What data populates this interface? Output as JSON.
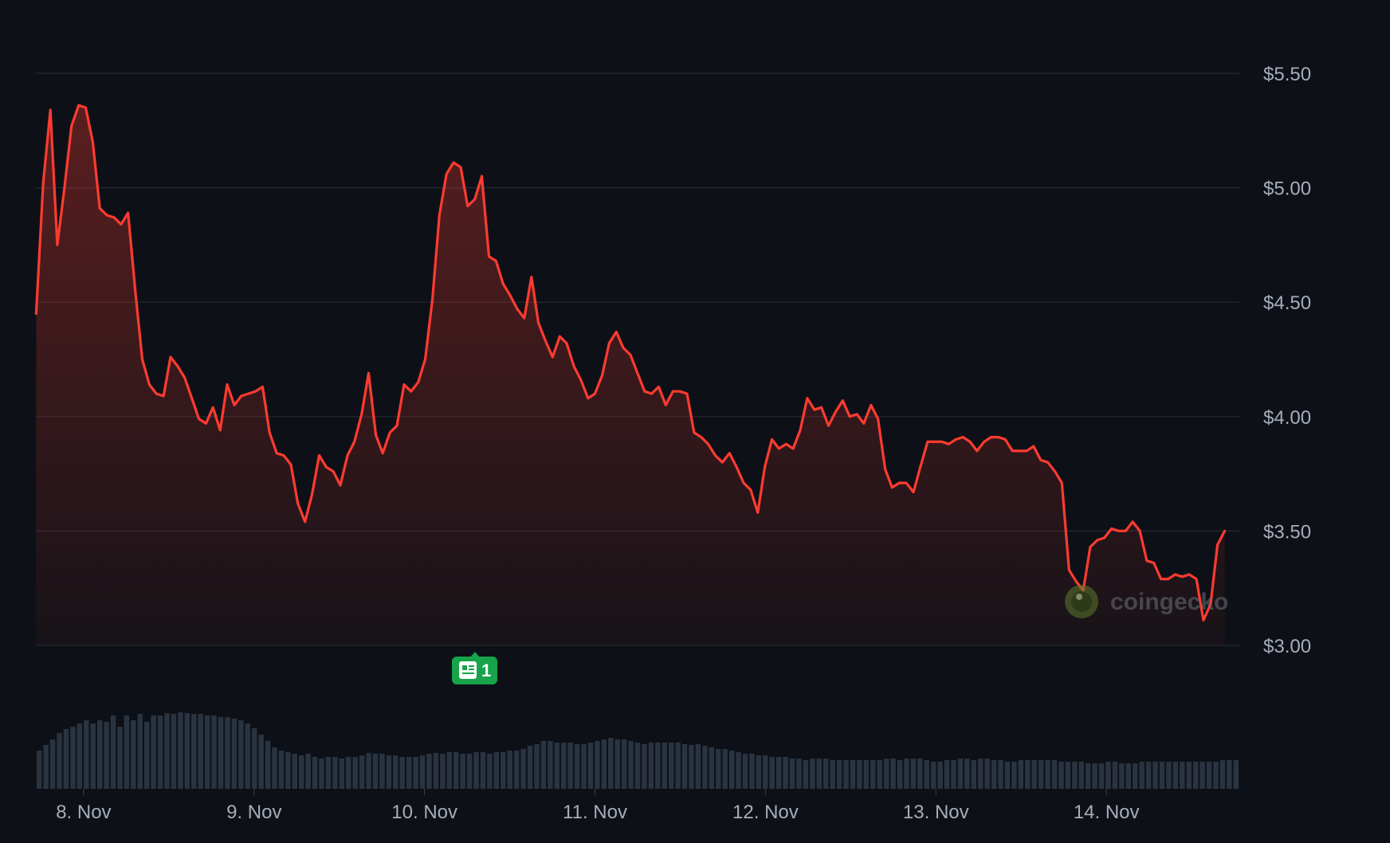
{
  "colors": {
    "background": "#0d1117",
    "line": "#ff3b30",
    "grid": "#242a33",
    "volume": "#2a3340",
    "tick_text": "#a7adb9",
    "news_badge": "#16a34a"
  },
  "watermark": {
    "text": "coingecko",
    "icon": "coingecko-logo-icon"
  },
  "news_badge": {
    "count": "1",
    "icon": "newspaper-icon"
  },
  "chart_data": {
    "type": "area",
    "title": "",
    "xlabel": "",
    "ylabel": "",
    "ylim": [
      3.0,
      5.5
    ],
    "xlim": [
      7.72,
      14.78
    ],
    "grid": true,
    "legend": "none",
    "y_ticks": [
      5.5,
      5.0,
      4.5,
      4.0,
      3.5,
      3.0
    ],
    "y_tick_labels": [
      "$5.50",
      "$5.00",
      "$4.50",
      "$4.00",
      "$3.50",
      "$3.00"
    ],
    "x_ticks": [
      8,
      9,
      10,
      11,
      12,
      13,
      14
    ],
    "x_tick_labels": [
      "8. Nov",
      "9. Nov",
      "10. Nov",
      "11. Nov",
      "12. Nov",
      "13. Nov",
      "14. Nov"
    ],
    "series": [
      {
        "values": [
          [
            7.722,
            4.45
          ],
          [
            7.763,
            5.02
          ],
          [
            7.805,
            5.34
          ],
          [
            7.846,
            4.75
          ],
          [
            7.888,
            5.0
          ],
          [
            7.929,
            5.27
          ],
          [
            7.971,
            5.36
          ],
          [
            8.012,
            5.35
          ],
          [
            8.054,
            5.2
          ],
          [
            8.095,
            4.91
          ],
          [
            8.137,
            4.88
          ],
          [
            8.178,
            4.87
          ],
          [
            8.22,
            4.84
          ],
          [
            8.261,
            4.89
          ],
          [
            8.303,
            4.55
          ],
          [
            8.344,
            4.25
          ],
          [
            8.386,
            4.14
          ],
          [
            8.427,
            4.1
          ],
          [
            8.469,
            4.09
          ],
          [
            8.51,
            4.26
          ],
          [
            8.552,
            4.22
          ],
          [
            8.593,
            4.17
          ],
          [
            8.635,
            4.08
          ],
          [
            8.676,
            3.99
          ],
          [
            8.718,
            3.97
          ],
          [
            8.759,
            4.04
          ],
          [
            8.801,
            3.94
          ],
          [
            8.842,
            4.14
          ],
          [
            8.884,
            4.05
          ],
          [
            8.925,
            4.09
          ],
          [
            8.967,
            4.1
          ],
          [
            9.008,
            4.11
          ],
          [
            9.05,
            4.13
          ],
          [
            9.091,
            3.93
          ],
          [
            9.133,
            3.84
          ],
          [
            9.174,
            3.83
          ],
          [
            9.216,
            3.79
          ],
          [
            9.257,
            3.62
          ],
          [
            9.299,
            3.54
          ],
          [
            9.34,
            3.66
          ],
          [
            9.382,
            3.83
          ],
          [
            9.423,
            3.78
          ],
          [
            9.465,
            3.76
          ],
          [
            9.506,
            3.7
          ],
          [
            9.548,
            3.83
          ],
          [
            9.589,
            3.89
          ],
          [
            9.631,
            4.01
          ],
          [
            9.672,
            4.19
          ],
          [
            9.714,
            3.92
          ],
          [
            9.755,
            3.84
          ],
          [
            9.797,
            3.93
          ],
          [
            9.838,
            3.96
          ],
          [
            9.88,
            4.14
          ],
          [
            9.921,
            4.11
          ],
          [
            9.963,
            4.15
          ],
          [
            10.004,
            4.25
          ],
          [
            10.046,
            4.51
          ],
          [
            10.087,
            4.88
          ],
          [
            10.129,
            5.06
          ],
          [
            10.17,
            5.11
          ],
          [
            10.212,
            5.09
          ],
          [
            10.253,
            4.92
          ],
          [
            10.295,
            4.95
          ],
          [
            10.336,
            5.05
          ],
          [
            10.378,
            4.7
          ],
          [
            10.419,
            4.68
          ],
          [
            10.461,
            4.58
          ],
          [
            10.502,
            4.53
          ],
          [
            10.544,
            4.47
          ],
          [
            10.585,
            4.43
          ],
          [
            10.627,
            4.61
          ],
          [
            10.668,
            4.41
          ],
          [
            10.71,
            4.33
          ],
          [
            10.751,
            4.26
          ],
          [
            10.793,
            4.35
          ],
          [
            10.834,
            4.32
          ],
          [
            10.876,
            4.22
          ],
          [
            10.917,
            4.16
          ],
          [
            10.959,
            4.08
          ],
          [
            11.0,
            4.1
          ],
          [
            11.042,
            4.18
          ],
          [
            11.083,
            4.32
          ],
          [
            11.125,
            4.37
          ],
          [
            11.166,
            4.3
          ],
          [
            11.208,
            4.27
          ],
          [
            11.249,
            4.19
          ],
          [
            11.291,
            4.11
          ],
          [
            11.332,
            4.1
          ],
          [
            11.374,
            4.13
          ],
          [
            11.415,
            4.05
          ],
          [
            11.457,
            4.11
          ],
          [
            11.498,
            4.11
          ],
          [
            11.54,
            4.1
          ],
          [
            11.581,
            3.93
          ],
          [
            11.623,
            3.91
          ],
          [
            11.664,
            3.88
          ],
          [
            11.706,
            3.83
          ],
          [
            11.747,
            3.8
          ],
          [
            11.789,
            3.84
          ],
          [
            11.83,
            3.78
          ],
          [
            11.872,
            3.71
          ],
          [
            11.913,
            3.68
          ],
          [
            11.955,
            3.58
          ],
          [
            11.996,
            3.78
          ],
          [
            12.038,
            3.9
          ],
          [
            12.079,
            3.86
          ],
          [
            12.121,
            3.88
          ],
          [
            12.162,
            3.86
          ],
          [
            12.204,
            3.94
          ],
          [
            12.245,
            4.08
          ],
          [
            12.287,
            4.03
          ],
          [
            12.328,
            4.04
          ],
          [
            12.37,
            3.96
          ],
          [
            12.411,
            4.02
          ],
          [
            12.453,
            4.07
          ],
          [
            12.494,
            4.0
          ],
          [
            12.536,
            4.01
          ],
          [
            12.577,
            3.97
          ],
          [
            12.619,
            4.05
          ],
          [
            12.66,
            3.99
          ],
          [
            12.702,
            3.77
          ],
          [
            12.743,
            3.69
          ],
          [
            12.785,
            3.71
          ],
          [
            12.826,
            3.71
          ],
          [
            12.868,
            3.67
          ],
          [
            12.909,
            3.78
          ],
          [
            12.951,
            3.89
          ],
          [
            12.992,
            3.89
          ],
          [
            13.034,
            3.89
          ],
          [
            13.075,
            3.88
          ],
          [
            13.117,
            3.9
          ],
          [
            13.158,
            3.91
          ],
          [
            13.2,
            3.89
          ],
          [
            13.241,
            3.85
          ],
          [
            13.283,
            3.89
          ],
          [
            13.324,
            3.91
          ],
          [
            13.366,
            3.91
          ],
          [
            13.407,
            3.9
          ],
          [
            13.449,
            3.85
          ],
          [
            13.49,
            3.85
          ],
          [
            13.532,
            3.85
          ],
          [
            13.573,
            3.87
          ],
          [
            13.615,
            3.81
          ],
          [
            13.656,
            3.8
          ],
          [
            13.698,
            3.76
          ],
          [
            13.739,
            3.71
          ],
          [
            13.781,
            3.33
          ],
          [
            13.822,
            3.28
          ],
          [
            13.864,
            3.24
          ],
          [
            13.905,
            3.43
          ],
          [
            13.947,
            3.46
          ],
          [
            13.988,
            3.47
          ],
          [
            14.03,
            3.51
          ],
          [
            14.071,
            3.5
          ],
          [
            14.113,
            3.5
          ],
          [
            14.154,
            3.54
          ],
          [
            14.196,
            3.5
          ],
          [
            14.237,
            3.37
          ],
          [
            14.279,
            3.36
          ],
          [
            14.32,
            3.29
          ],
          [
            14.362,
            3.29
          ],
          [
            14.403,
            3.31
          ],
          [
            14.445,
            3.3
          ],
          [
            14.486,
            3.31
          ],
          [
            14.528,
            3.29
          ],
          [
            14.569,
            3.11
          ],
          [
            14.611,
            3.18
          ],
          [
            14.652,
            3.44
          ],
          [
            14.694,
            3.5
          ]
        ]
      }
    ],
    "volume": [
      0.48,
      0.55,
      0.62,
      0.7,
      0.75,
      0.78,
      0.82,
      0.86,
      0.82,
      0.86,
      0.84,
      0.92,
      0.78,
      0.92,
      0.86,
      0.94,
      0.84,
      0.92,
      0.92,
      0.95,
      0.94,
      0.96,
      0.95,
      0.94,
      0.94,
      0.92,
      0.92,
      0.9,
      0.9,
      0.88,
      0.86,
      0.82,
      0.76,
      0.68,
      0.6,
      0.52,
      0.48,
      0.46,
      0.44,
      0.42,
      0.44,
      0.4,
      0.38,
      0.4,
      0.4,
      0.38,
      0.4,
      0.4,
      0.42,
      0.45,
      0.44,
      0.44,
      0.42,
      0.42,
      0.4,
      0.4,
      0.4,
      0.42,
      0.44,
      0.45,
      0.44,
      0.46,
      0.46,
      0.44,
      0.44,
      0.46,
      0.46,
      0.44,
      0.46,
      0.46,
      0.48,
      0.48,
      0.5,
      0.54,
      0.56,
      0.6,
      0.6,
      0.58,
      0.58,
      0.58,
      0.56,
      0.56,
      0.58,
      0.6,
      0.62,
      0.64,
      0.62,
      0.62,
      0.6,
      0.58,
      0.56,
      0.58,
      0.58,
      0.58,
      0.58,
      0.58,
      0.56,
      0.55,
      0.56,
      0.54,
      0.52,
      0.5,
      0.5,
      0.48,
      0.46,
      0.44,
      0.44,
      0.42,
      0.42,
      0.4,
      0.4,
      0.4,
      0.38,
      0.38,
      0.36,
      0.38,
      0.38,
      0.38,
      0.36,
      0.36,
      0.36,
      0.36,
      0.36,
      0.36,
      0.36,
      0.36,
      0.38,
      0.38,
      0.36,
      0.38,
      0.38,
      0.38,
      0.36,
      0.34,
      0.34,
      0.36,
      0.36,
      0.38,
      0.38,
      0.36,
      0.38,
      0.38,
      0.36,
      0.36,
      0.34,
      0.34,
      0.36,
      0.36,
      0.36,
      0.36,
      0.36,
      0.36,
      0.34,
      0.34,
      0.34,
      0.34,
      0.32,
      0.32,
      0.32,
      0.34,
      0.34,
      0.32,
      0.32,
      0.32,
      0.34,
      0.34,
      0.34,
      0.34,
      0.34,
      0.34,
      0.34,
      0.34,
      0.34,
      0.34,
      0.34,
      0.34,
      0.36,
      0.36,
      0.36
    ]
  }
}
